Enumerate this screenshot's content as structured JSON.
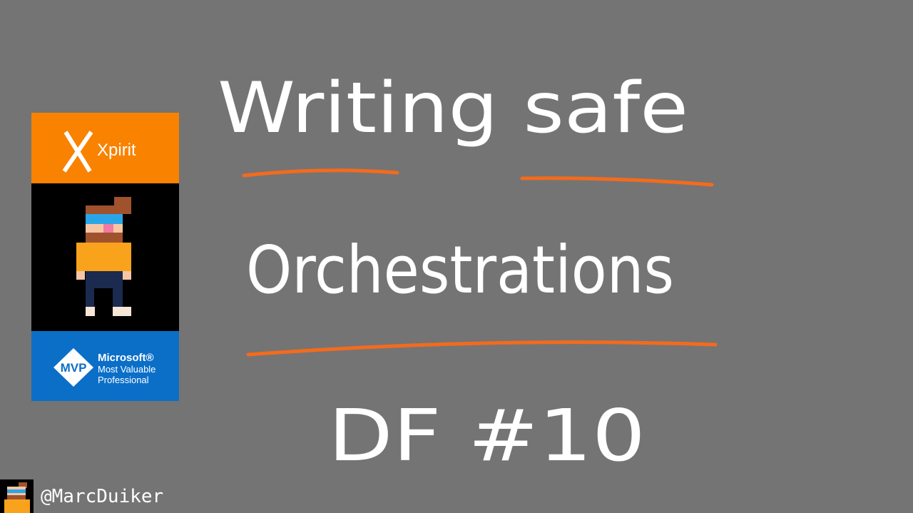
{
  "slide": {
    "title_line1": "Writing safe",
    "title_line2": "Orchestrations",
    "subtitle": "DF #10"
  },
  "badge": {
    "company": "Xpirit",
    "mvp": "MVP",
    "microsoft": "Microsoft®",
    "line1": "Most Valuable",
    "line2": "Professional"
  },
  "footer": {
    "handle": "@MarcDuiker"
  }
}
